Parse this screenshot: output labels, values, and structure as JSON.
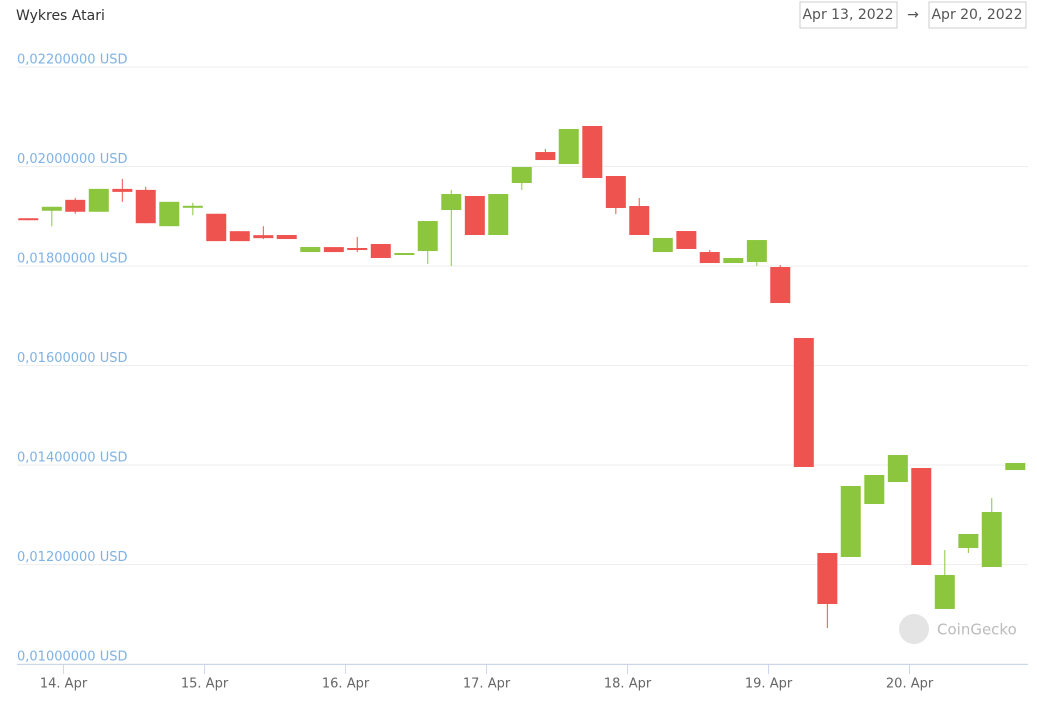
{
  "chart_data": {
    "type": "candlestick",
    "title": "Wykres Atari",
    "date_range": {
      "from": "Apr 13, 2022",
      "separator": "→",
      "to": "Apr 20, 2022"
    },
    "watermark": "CoinGecko",
    "x": [
      13.75,
      13.917,
      14.083,
      14.25,
      14.417,
      14.583,
      14.75,
      14.917,
      15.083,
      15.25,
      15.417,
      15.583,
      15.75,
      15.917,
      16.083,
      16.25,
      16.417,
      16.583,
      16.75,
      16.917,
      17.083,
      17.25,
      17.417,
      17.583,
      17.75,
      17.917,
      18.083,
      18.25,
      18.417,
      18.583,
      18.75,
      18.917,
      19.083,
      19.25,
      19.417,
      19.583,
      19.75,
      19.917,
      20.083,
      20.25,
      20.417,
      20.583,
      20.75
    ],
    "open": [
      0.01896,
      0.01911,
      0.01933,
      0.01909,
      0.01955,
      0.01953,
      0.0188,
      0.01917,
      0.01905,
      0.0187,
      0.01862,
      0.018623,
      0.018281,
      0.01838,
      0.018362,
      0.018442,
      0.018221,
      0.018301,
      0.019125,
      0.019407,
      0.018623,
      0.019668,
      0.020291,
      0.02005,
      0.020814,
      0.019809,
      0.019206,
      0.018281,
      0.018703,
      0.018281,
      0.01806,
      0.01808,
      0.01798,
      0.016553,
      0.012231,
      0.012151,
      0.013216,
      0.013658,
      0.01394,
      0.011106,
      0.012332,
      0.01195,
      0.013899
    ],
    "high": [
      0.01896,
      0.01919,
      0.01937,
      0.01955,
      0.01975,
      0.01959,
      0.01929,
      0.01927,
      0.01905,
      0.0187,
      0.0188,
      0.018623,
      0.018382,
      0.01838,
      0.018583,
      0.018442,
      0.018261,
      0.018904,
      0.019527,
      0.019407,
      0.019447,
      0.01999,
      0.020352,
      0.020754,
      0.020814,
      0.019809,
      0.019367,
      0.018563,
      0.018703,
      0.018321,
      0.018161,
      0.018522,
      0.01802,
      0.016553,
      0.012231,
      0.013578,
      0.013799,
      0.014201,
      0.01394,
      0.012291,
      0.012613,
      0.013337,
      0.01404
    ],
    "low": [
      0.01892,
      0.0188,
      0.01905,
      0.01909,
      0.01929,
      0.01886,
      0.0188,
      0.01902,
      0.0185,
      0.0185,
      0.01854,
      0.018542,
      0.018281,
      0.01828,
      0.018281,
      0.018161,
      0.018221,
      0.01804,
      0.018,
      0.018623,
      0.018623,
      0.019527,
      0.02013,
      0.02005,
      0.019769,
      0.019045,
      0.018623,
      0.018281,
      0.018342,
      0.01806,
      0.01806,
      0.018,
      0.017256,
      0.01396,
      0.010724,
      0.012151,
      0.013216,
      0.013658,
      0.01199,
      0.011106,
      0.012231,
      0.01195,
      0.013899
    ],
    "close": [
      0.01892,
      0.01919,
      0.01909,
      0.01955,
      0.01949,
      0.01886,
      0.01929,
      0.01921,
      0.0185,
      0.0185,
      0.01856,
      0.018542,
      0.018382,
      0.01828,
      0.018321,
      0.018161,
      0.018261,
      0.018904,
      0.019447,
      0.018623,
      0.019447,
      0.01999,
      0.02013,
      0.020754,
      0.019769,
      0.019166,
      0.018623,
      0.018563,
      0.018342,
      0.01806,
      0.018161,
      0.018522,
      0.017256,
      0.01396,
      0.011206,
      0.013578,
      0.013799,
      0.014201,
      0.01199,
      0.011789,
      0.012613,
      0.013055,
      0.01404
    ],
    "up_color": "#8cc63f",
    "down_color": "#ef5350",
    "xlim": [
      13.67,
      20.84
    ],
    "xticks": [
      {
        "value": 14,
        "label": "14. Apr"
      },
      {
        "value": 15,
        "label": "15. Apr"
      },
      {
        "value": 16,
        "label": "16. Apr"
      },
      {
        "value": 17,
        "label": "17. Apr"
      },
      {
        "value": 18,
        "label": "18. Apr"
      },
      {
        "value": 19,
        "label": "19. Apr"
      },
      {
        "value": 20,
        "label": "20. Apr"
      }
    ],
    "ylim": [
      0.01,
      0.022
    ],
    "yticks": [
      {
        "value": 0.01,
        "label": "0,01000000 USD"
      },
      {
        "value": 0.012,
        "label": "0,01200000 USD"
      },
      {
        "value": 0.014,
        "label": "0,01400000 USD"
      },
      {
        "value": 0.016,
        "label": "0,01600000 USD"
      },
      {
        "value": 0.018,
        "label": "0,01800000 USD"
      },
      {
        "value": 0.02,
        "label": "0,02000000 USD"
      },
      {
        "value": 0.022,
        "label": "0,02200000 USD"
      }
    ],
    "grid": true
  }
}
